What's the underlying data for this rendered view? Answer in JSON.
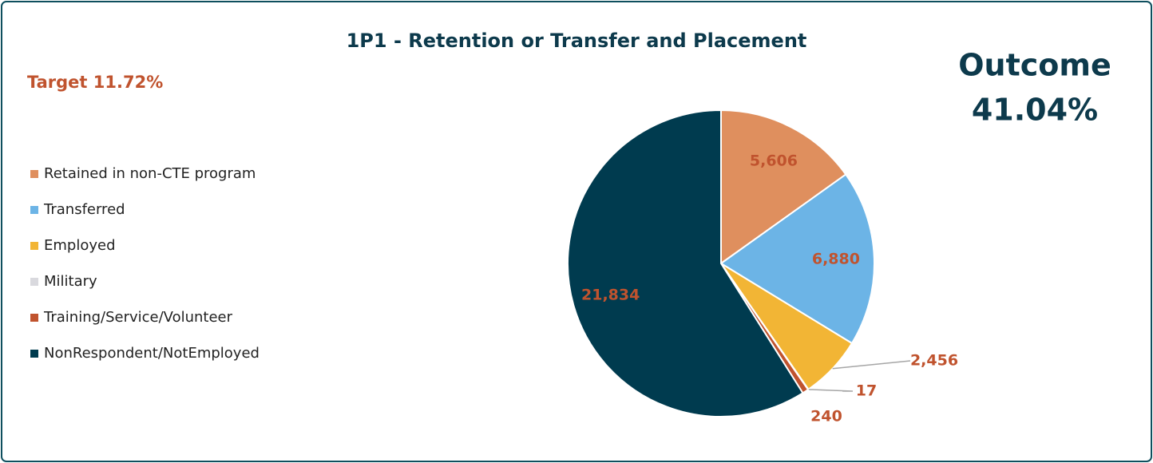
{
  "chart_data": {
    "type": "pie",
    "title": "1P1 - Retention or Transfer and Placement",
    "annotations": {
      "target": "Target 11.72%",
      "outcome_label": "Outcome",
      "outcome_value": "41.04%"
    },
    "categories": [
      "Retained in non-CTE program",
      "Transferred",
      "Employed",
      "Military",
      "Training/Service/Volunteer",
      "NonRespondent/NotEmployed"
    ],
    "values": [
      5606,
      6880,
      2456,
      17,
      240,
      21834
    ],
    "value_labels": [
      "5,606",
      "6,880",
      "2,456",
      "17",
      "240",
      "21,834"
    ],
    "colors": [
      "#df8f5e",
      "#6cb4e6",
      "#f2b535",
      "#d9d9de",
      "#c0532e",
      "#003b4f"
    ],
    "legend": "left"
  }
}
